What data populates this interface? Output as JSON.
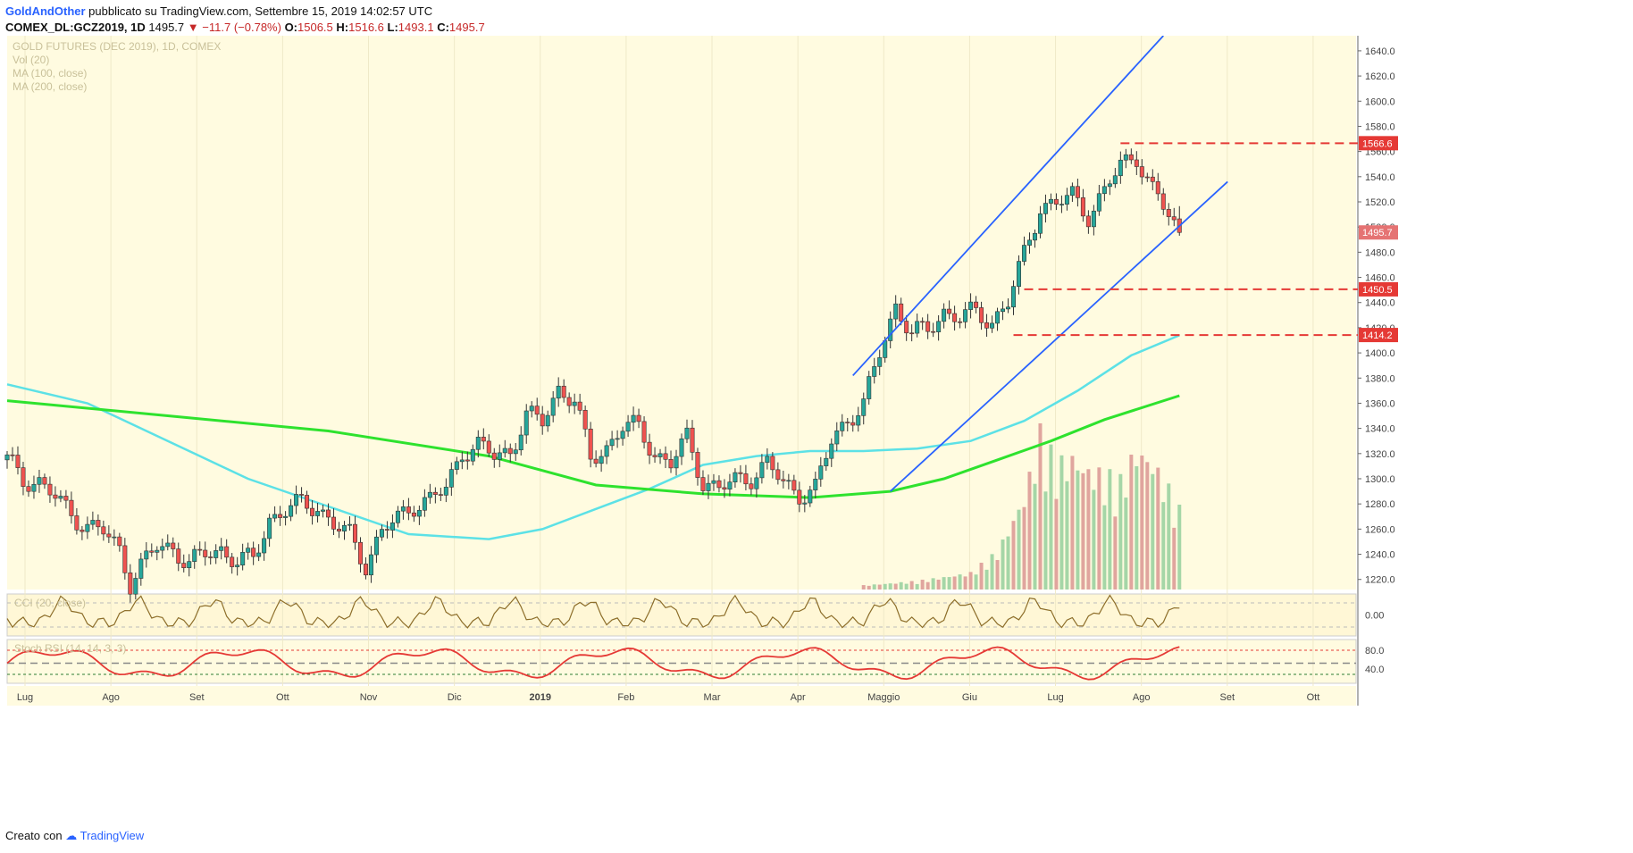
{
  "header": {
    "author": "GoldAndOther",
    "published": "pubblicato su TradingView.com, Settembre 15, 2019 14:02:57 UTC",
    "symbol": "COMEX_DL:GCZ2019, 1D",
    "last": "1495.7",
    "change": "−11.7 (−0.78%)",
    "open_label": "O:",
    "open": "1506.5",
    "high_label": "H:",
    "high": "1516.6",
    "low_label": "L:",
    "low": "1493.1",
    "close_label": "C:",
    "close": "1495.7"
  },
  "footer": {
    "created_with": "Creato con",
    "brand": "TradingView"
  },
  "chart_data": {
    "type": "candlestick",
    "legend": [
      "GOLD FUTURES (DEC 2019), 1D, COMEX",
      "Vol (20)",
      "MA (100, close)",
      "MA (200, close)"
    ],
    "price_axis": {
      "min": 1212,
      "max": 1652,
      "ticks": [
        1220,
        1240,
        1260,
        1280,
        1300,
        1320,
        1340,
        1360,
        1380,
        1400,
        1420,
        1440,
        1460,
        1480,
        1500,
        1520,
        1540,
        1560,
        1580,
        1600,
        1620,
        1640
      ]
    },
    "time_axis": [
      "Lug",
      "Ago",
      "Set",
      "Ott",
      "Nov",
      "Dic",
      "2019",
      "Feb",
      "Mar",
      "Apr",
      "Maggio",
      "Giu",
      "Lug",
      "Ago",
      "Set",
      "Ott"
    ],
    "price_close_path": [
      [
        0,
        1315
      ],
      [
        3,
        1300
      ],
      [
        6,
        1297
      ],
      [
        9,
        1285
      ],
      [
        12,
        1272
      ],
      [
        15,
        1262
      ],
      [
        18,
        1258
      ],
      [
        21,
        1244
      ],
      [
        23,
        1218
      ],
      [
        25,
        1230
      ],
      [
        28,
        1246
      ],
      [
        31,
        1245
      ],
      [
        34,
        1232
      ],
      [
        37,
        1240
      ],
      [
        40,
        1244
      ],
      [
        43,
        1234
      ],
      [
        46,
        1236
      ],
      [
        49,
        1268
      ],
      [
        52,
        1275
      ],
      [
        55,
        1280
      ],
      [
        58,
        1278
      ],
      [
        61,
        1263
      ],
      [
        64,
        1255
      ],
      [
        67,
        1232
      ],
      [
        70,
        1258
      ],
      [
        73,
        1268
      ],
      [
        76,
        1280
      ],
      [
        79,
        1283
      ],
      [
        82,
        1292
      ],
      [
        85,
        1322
      ],
      [
        88,
        1326
      ],
      [
        91,
        1318
      ],
      [
        94,
        1322
      ],
      [
        97,
        1350
      ],
      [
        100,
        1345
      ],
      [
        103,
        1372
      ],
      [
        106,
        1362
      ],
      [
        109,
        1315
      ],
      [
        112,
        1325
      ],
      [
        115,
        1342
      ],
      [
        118,
        1340
      ],
      [
        121,
        1320
      ],
      [
        124,
        1312
      ],
      [
        127,
        1332
      ],
      [
        130,
        1298
      ],
      [
        133,
        1292
      ],
      [
        136,
        1298
      ],
      [
        139,
        1302
      ],
      [
        142,
        1312
      ],
      [
        145,
        1296
      ],
      [
        148,
        1288
      ],
      [
        151,
        1292
      ],
      [
        154,
        1330
      ],
      [
        157,
        1348
      ],
      [
        160,
        1358
      ],
      [
        163,
        1400
      ],
      [
        166,
        1438
      ],
      [
        169,
        1415
      ],
      [
        172,
        1418
      ],
      [
        175,
        1433
      ],
      [
        178,
        1428
      ],
      [
        181,
        1432
      ],
      [
        184,
        1425
      ],
      [
        187,
        1440
      ],
      [
        190,
        1478
      ],
      [
        193,
        1517
      ],
      [
        196,
        1518
      ],
      [
        199,
        1525
      ],
      [
        202,
        1510
      ],
      [
        205,
        1527
      ],
      [
        208,
        1550
      ],
      [
        211,
        1557
      ],
      [
        214,
        1528
      ],
      [
        217,
        1510
      ],
      [
        219,
        1496
      ]
    ],
    "candles_last": {
      "open": 1506.5,
      "high": 1516.6,
      "low": 1493.1,
      "close": 1495.7
    },
    "ma100_path": [
      [
        0,
        1375
      ],
      [
        15,
        1360
      ],
      [
        30,
        1330
      ],
      [
        45,
        1300
      ],
      [
        60,
        1278
      ],
      [
        75,
        1256
      ],
      [
        90,
        1252
      ],
      [
        100,
        1260
      ],
      [
        110,
        1276
      ],
      [
        120,
        1292
      ],
      [
        130,
        1311
      ],
      [
        140,
        1318
      ],
      [
        150,
        1322
      ],
      [
        160,
        1322
      ],
      [
        170,
        1324
      ],
      [
        180,
        1330
      ],
      [
        190,
        1346
      ],
      [
        200,
        1370
      ],
      [
        210,
        1398
      ],
      [
        219,
        1414
      ]
    ],
    "ma200_path": [
      [
        0,
        1362
      ],
      [
        30,
        1350
      ],
      [
        60,
        1338
      ],
      [
        90,
        1318
      ],
      [
        110,
        1295
      ],
      [
        130,
        1288
      ],
      [
        150,
        1285
      ],
      [
        165,
        1290
      ],
      [
        175,
        1300
      ],
      [
        185,
        1315
      ],
      [
        195,
        1330
      ],
      [
        205,
        1347
      ],
      [
        219,
        1366
      ]
    ],
    "volume_path": [
      [
        160,
        2
      ],
      [
        170,
        4
      ],
      [
        180,
        8
      ],
      [
        185,
        18
      ],
      [
        190,
        45
      ],
      [
        193,
        75
      ],
      [
        196,
        60
      ],
      [
        199,
        64
      ],
      [
        202,
        58
      ],
      [
        205,
        55
      ],
      [
        208,
        52
      ],
      [
        211,
        68
      ],
      [
        214,
        62
      ],
      [
        217,
        48
      ],
      [
        219,
        38
      ]
    ],
    "channel_lines": [
      {
        "from": [
          158,
          1382
        ],
        "to": [
          216,
          1652
        ]
      },
      {
        "from": [
          165,
          1290
        ],
        "to": [
          228,
          1536
        ]
      }
    ],
    "horizontal_levels": [
      {
        "value": 1566.6,
        "label": "1566.6",
        "color": "#e53935"
      },
      {
        "value": 1450.5,
        "label": "1450.5",
        "color": "#e53935"
      },
      {
        "value": 1414.2,
        "label": "1414.2",
        "color": "#e53935"
      }
    ],
    "last_price_label": "1495.7",
    "cci": {
      "legend": "CCI (20, close)",
      "axis_label": "0.00"
    },
    "stoch_rsi": {
      "legend": "Stoch RSI (14, 14, 3, 3)",
      "axis_labels": [
        "80.0",
        "40.0"
      ]
    }
  },
  "colors": {
    "bg": "#fffbe0",
    "up": "#26a69a",
    "down": "#ef5350",
    "ma100": "#5ce1e6",
    "ma200": "#2ee22e",
    "channel": "#2962ff",
    "level": "#e53935"
  }
}
